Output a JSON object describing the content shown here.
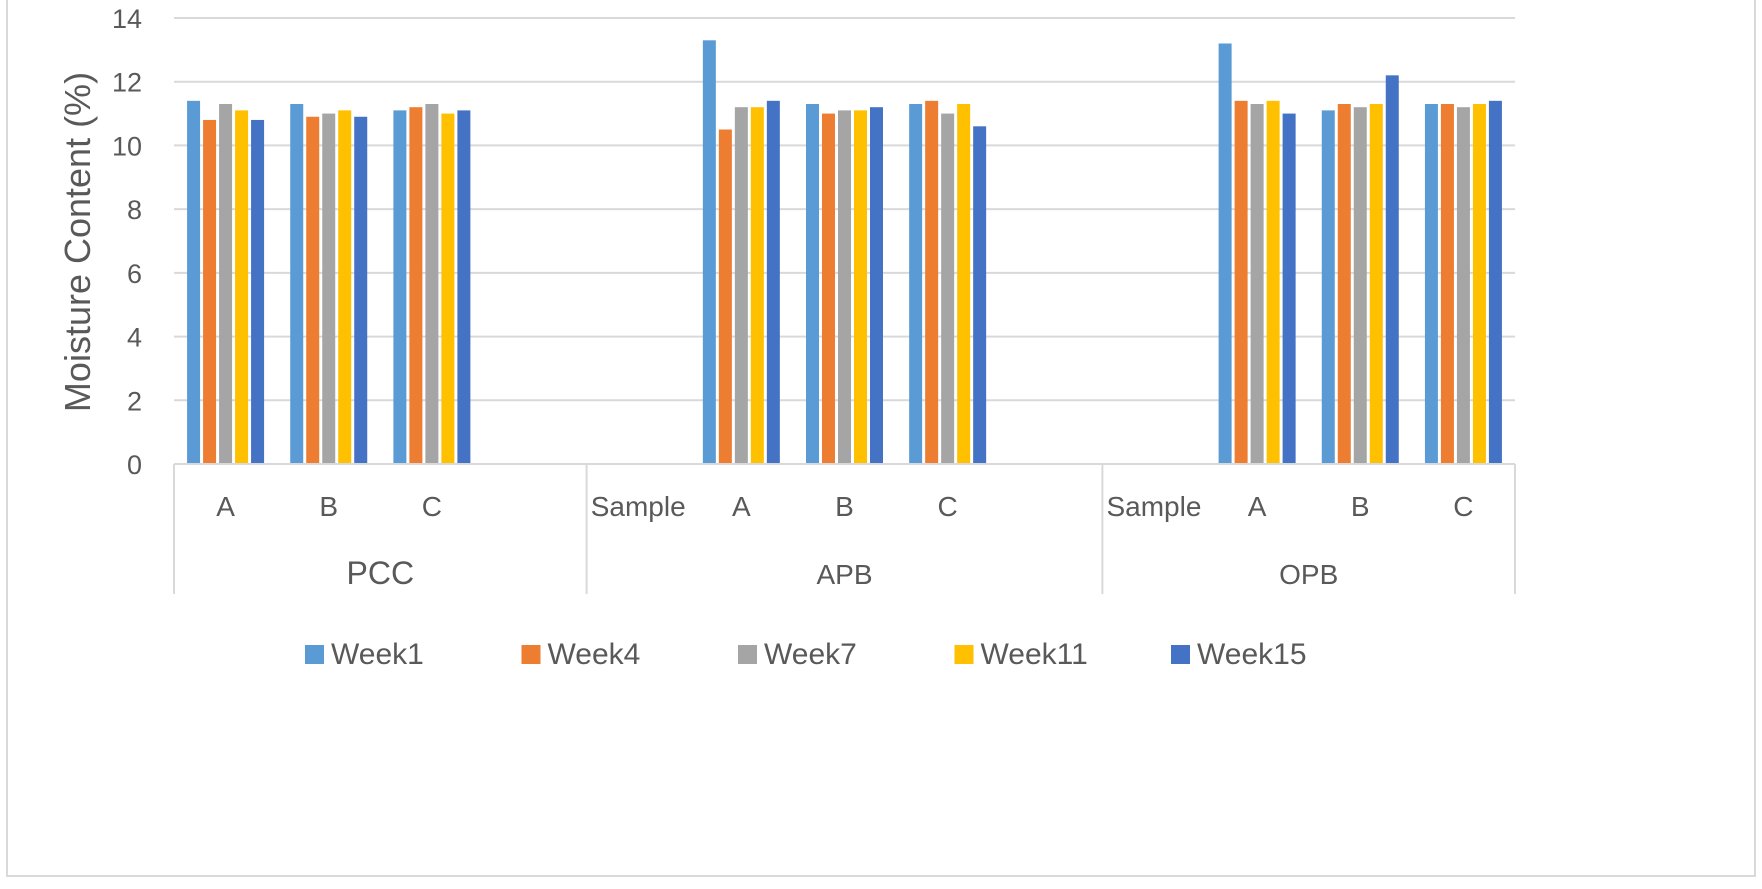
{
  "chart_data": {
    "type": "bar",
    "title": "",
    "xlabel": "",
    "ylabel": "Moisture Content (%)",
    "ylim": [
      0,
      14
    ],
    "yticks": [
      0,
      2,
      4,
      6,
      8,
      10,
      12,
      14
    ],
    "grid": true,
    "legend_position": "bottom",
    "groups": [
      {
        "name": "PCC",
        "categories": [
          "A",
          "B",
          "C",
          ""
        ]
      },
      {
        "name": "APB",
        "categories": [
          "Sample",
          "A",
          "B",
          "C",
          ""
        ]
      },
      {
        "name": "OPB",
        "categories": [
          "Sample",
          "A",
          "B",
          "C"
        ]
      }
    ],
    "series": [
      {
        "name": "Week1",
        "color": "#5B9BD5",
        "values": [
          11.4,
          11.3,
          11.1,
          null,
          null,
          13.3,
          11.3,
          11.3,
          null,
          null,
          13.2,
          11.1,
          11.3
        ]
      },
      {
        "name": "Week4",
        "color": "#ED7D31",
        "values": [
          10.8,
          10.9,
          11.2,
          null,
          null,
          10.5,
          11.0,
          11.4,
          null,
          null,
          11.4,
          11.3,
          11.3
        ]
      },
      {
        "name": "Week7",
        "color": "#A5A5A5",
        "values": [
          11.3,
          11.0,
          11.3,
          null,
          null,
          11.2,
          11.1,
          11.0,
          null,
          null,
          11.3,
          11.2,
          11.2
        ]
      },
      {
        "name": "Week11",
        "color": "#FFC000",
        "values": [
          11.1,
          11.1,
          11.0,
          null,
          null,
          11.2,
          11.1,
          11.3,
          null,
          null,
          11.4,
          11.3,
          11.3
        ]
      },
      {
        "name": "Week15",
        "color": "#4472C4",
        "values": [
          10.8,
          10.9,
          11.1,
          null,
          null,
          11.4,
          11.2,
          10.6,
          null,
          null,
          11.0,
          12.2,
          11.4
        ]
      }
    ]
  }
}
